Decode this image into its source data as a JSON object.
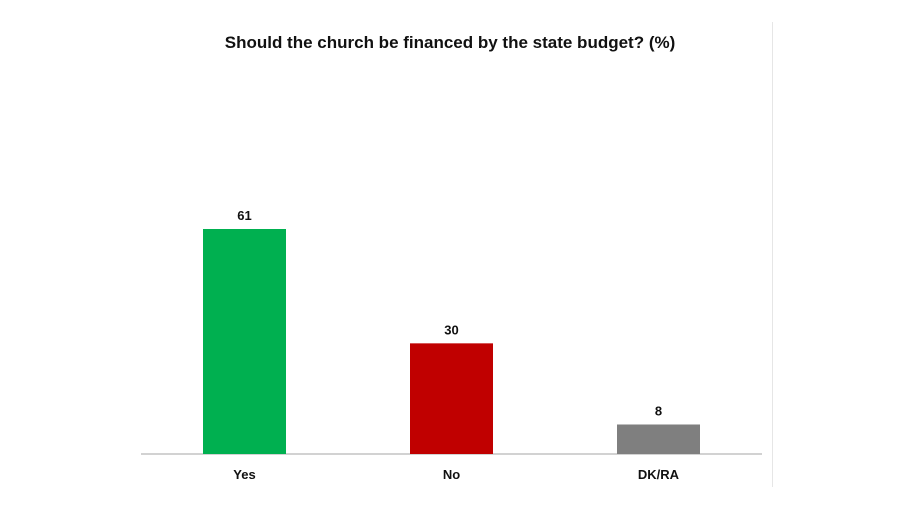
{
  "chart_data": {
    "type": "bar",
    "title": "Should the church be financed by the state budget? (%)",
    "categories": [
      "Yes",
      "No",
      "DK/RA"
    ],
    "values": [
      61,
      30,
      8
    ],
    "colors": [
      "#00b050",
      "#c00000",
      "#7f7f7f"
    ],
    "ylim": [
      0,
      61
    ],
    "grid": false,
    "legend": "none"
  }
}
